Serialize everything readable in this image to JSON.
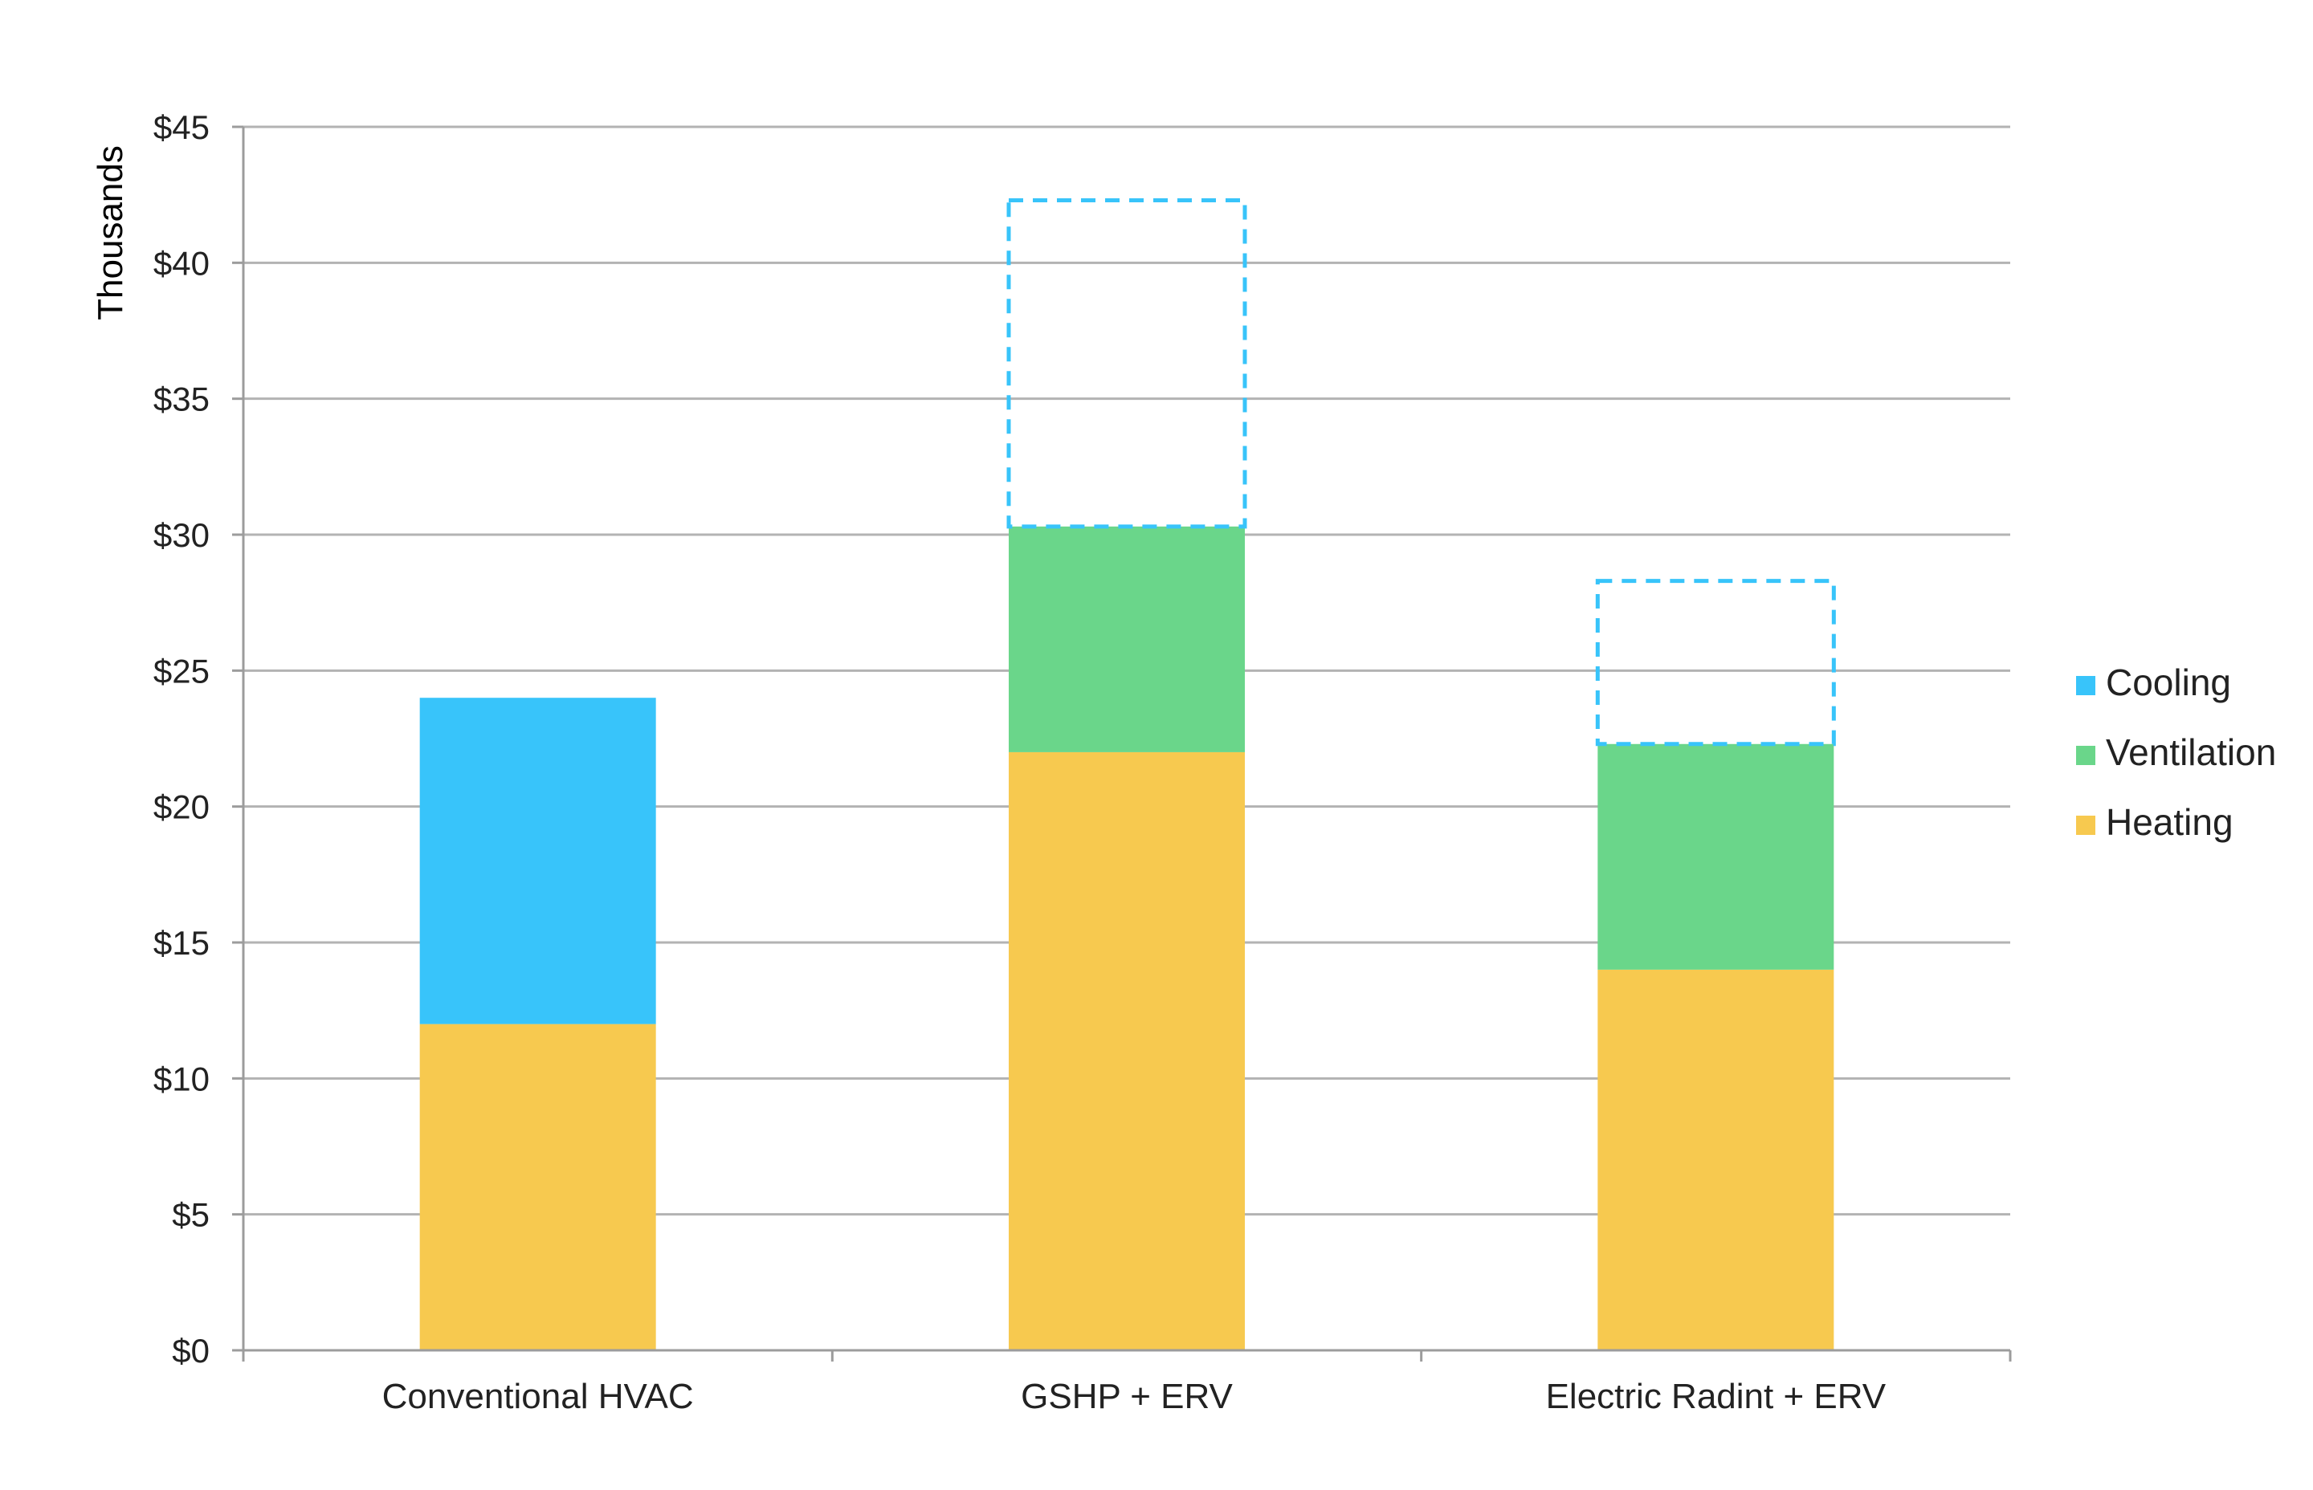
{
  "chart_data": {
    "type": "bar",
    "stacked": true,
    "title": "",
    "xlabel": "",
    "ylabel": "Thousands",
    "ylim": [
      0,
      45
    ],
    "yticks": [
      0,
      5,
      10,
      15,
      20,
      25,
      30,
      35,
      40,
      45
    ],
    "ytick_labels": [
      "$0",
      "$5",
      "$10",
      "$15",
      "$20",
      "$25",
      "$30",
      "$35",
      "$40",
      "$45"
    ],
    "categories": [
      "Conventional HVAC",
      "GSHP + ERV",
      "Electric Radint + ERV"
    ],
    "series": [
      {
        "name": "Heating",
        "color": "#F7C94F",
        "values": [
          12,
          22,
          14
        ]
      },
      {
        "name": "Ventilation",
        "color": "#6AD68A",
        "values": [
          0,
          8.3,
          8.3
        ]
      },
      {
        "name": "Cooling",
        "color": "#38C4FA",
        "values": [
          12,
          0,
          0
        ]
      }
    ],
    "dashed_outlines": {
      "color": "#38C4FA",
      "note_values": [
        {
          "category": "GSHP + ERV",
          "from": 30.3,
          "to": 42.3
        },
        {
          "category": "Electric Radint + ERV",
          "from": 22.3,
          "to": 28.3
        }
      ]
    },
    "legend": {
      "position": "right",
      "entries": [
        "Cooling",
        "Ventilation",
        "Heating"
      ]
    },
    "grid": true
  }
}
